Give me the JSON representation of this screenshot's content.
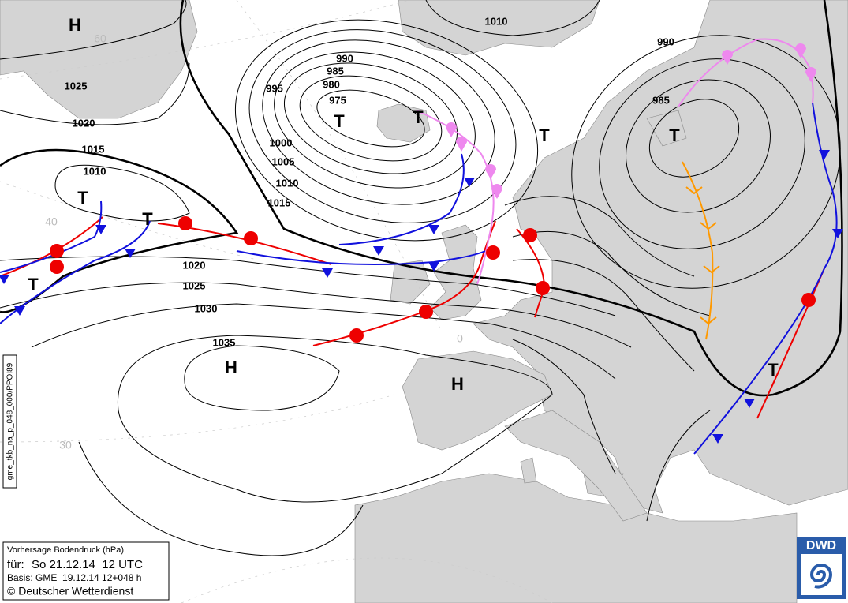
{
  "isobar_labels": [
    "1025",
    "1020",
    "1015",
    "1010",
    "1020",
    "1025",
    "1030",
    "1035",
    "990",
    "985",
    "980",
    "975",
    "995",
    "1000",
    "1005",
    "1010",
    "1015",
    "1010",
    "990",
    "985"
  ],
  "pressure_centers": [
    "H",
    "T",
    "T",
    "T",
    "T",
    "T",
    "T",
    "T",
    "H",
    "H",
    "T"
  ],
  "grid_labels": [
    "60",
    "40",
    "30",
    "0"
  ],
  "side_label": "gme_tkb_na_p_048_000/PPOI89",
  "info_box": {
    "title": "Vorhersage Bodendruck (hPa)",
    "valid_label": "für:",
    "valid_time": "So 21.12.14  12 UTC",
    "basis": "Basis: GME  19.12.14 12+048 h",
    "copyright": "© Deutscher Wetterdienst"
  },
  "logo": "DWD"
}
